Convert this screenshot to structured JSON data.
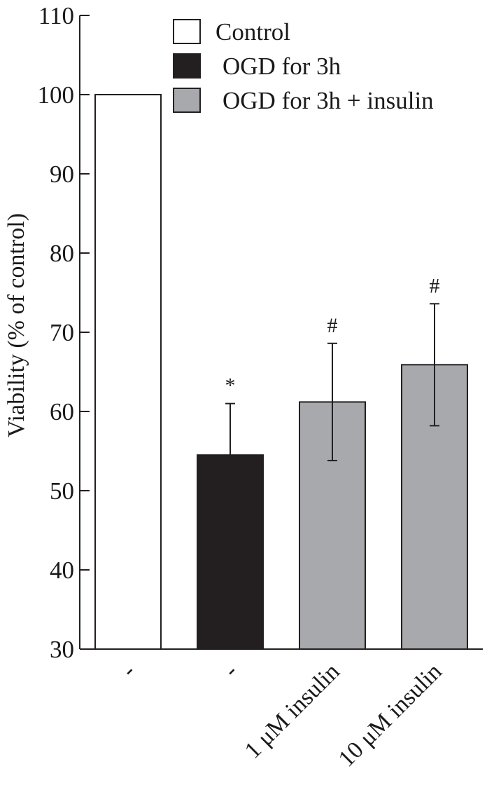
{
  "chart_data": {
    "type": "bar",
    "title": "",
    "xlabel": "",
    "ylabel": "Viability (% of control)",
    "ylim": [
      30,
      110
    ],
    "yticks": [
      30,
      40,
      50,
      60,
      70,
      80,
      90,
      100,
      110
    ],
    "grid": false,
    "legend_position": "top-right",
    "categories": [
      "-",
      "-",
      "1 μM insulin",
      "10 μM insulin"
    ],
    "bars": [
      {
        "category_index": 0,
        "series": "Control",
        "value": 100,
        "error": null,
        "annotation": ""
      },
      {
        "category_index": 1,
        "series": "OGD for 3h",
        "value": 54.5,
        "error": 6.5,
        "annotation": "*"
      },
      {
        "category_index": 2,
        "series": "OGD for 3h + insulin",
        "value": 61.2,
        "error": 7.4,
        "annotation": "#"
      },
      {
        "category_index": 3,
        "series": "OGD for 3h + insulin",
        "value": 65.9,
        "error": 7.7,
        "annotation": "#"
      }
    ],
    "series": [
      {
        "name": "Control",
        "color": "#ffffff"
      },
      {
        "name": "OGD for 3h",
        "color": "#231f20"
      },
      {
        "name": "OGD for 3h + insulin",
        "color": "#a7a9ac"
      }
    ]
  }
}
